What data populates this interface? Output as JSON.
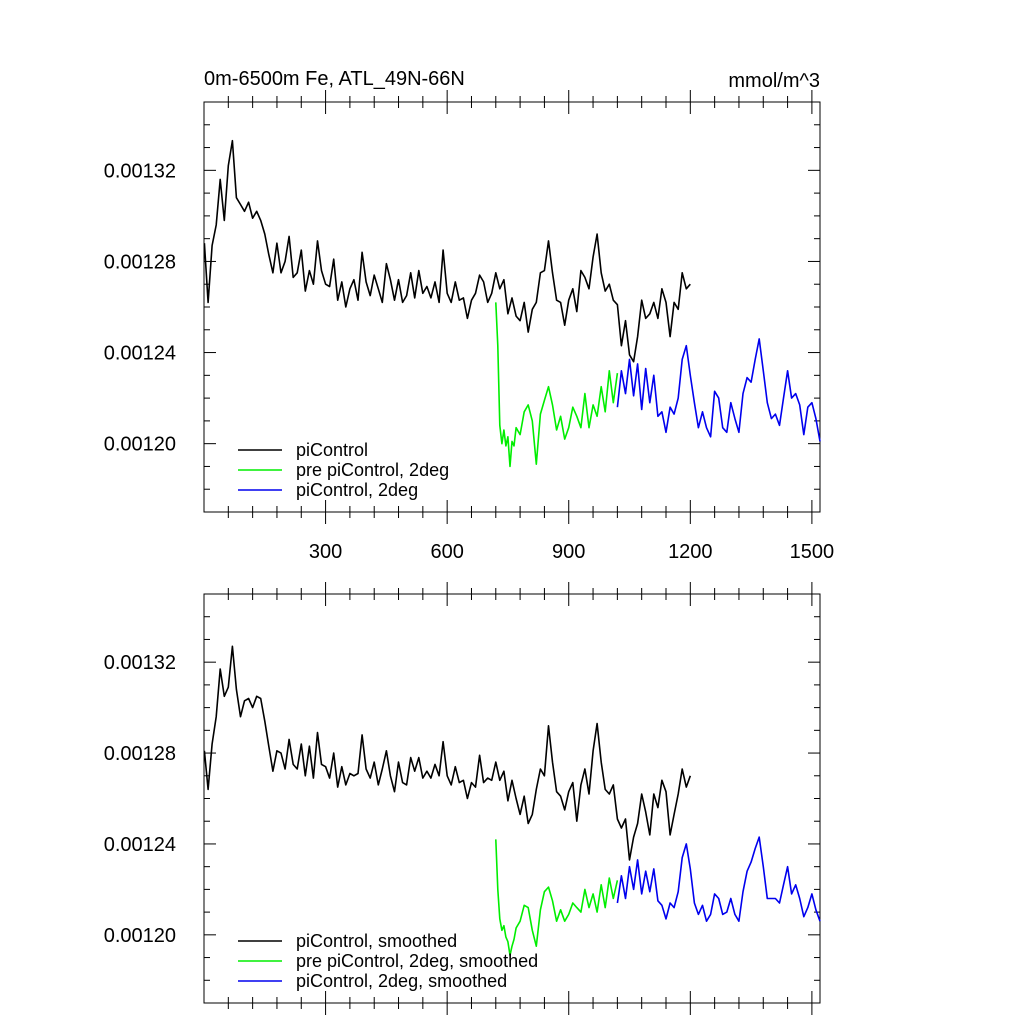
{
  "colors": {
    "black": "#000000",
    "green": "#00ee00",
    "blue": "#0000ee"
  },
  "chart_data": [
    {
      "type": "line",
      "title": "0m-6500m Fe, ATL_49N-66N",
      "units": "mmol/m^3",
      "xlim": [
        0,
        1520
      ],
      "ylim": [
        0.00117,
        0.00135
      ],
      "xticks": [
        "300",
        "600",
        "900",
        "1200",
        "1500"
      ],
      "yticks": [
        "0.00120",
        "0.00124",
        "0.00128",
        "0.00132"
      ],
      "series": [
        {
          "name": "piControl",
          "color": "#000000",
          "x": [
            1,
            10,
            20,
            30,
            40,
            50,
            60,
            70,
            80,
            90,
            100,
            110,
            120,
            130,
            140,
            150,
            160,
            170,
            180,
            190,
            200,
            210,
            220,
            230,
            240,
            250,
            260,
            270,
            280,
            290,
            300,
            310,
            320,
            330,
            340,
            350,
            360,
            370,
            380,
            390,
            400,
            410,
            420,
            430,
            440,
            450,
            460,
            470,
            480,
            490,
            500,
            510,
            520,
            530,
            540,
            550,
            560,
            570,
            580,
            590,
            600,
            610,
            620,
            630,
            640,
            650,
            660,
            670,
            680,
            690,
            700,
            710,
            720,
            730,
            740,
            750,
            760,
            770,
            780,
            790,
            800,
            810,
            820,
            830,
            840,
            850,
            860,
            870,
            880,
            890,
            900,
            910,
            920,
            930,
            940,
            950,
            960,
            970,
            980,
            990,
            1000,
            1010,
            1020,
            1030,
            1040,
            1050,
            1060,
            1070,
            1080,
            1090,
            1100,
            1110,
            1120,
            1130,
            1140,
            1150,
            1160,
            1170,
            1180,
            1190,
            1200
          ],
          "values": [
            0.001288,
            0.001262,
            0.001287,
            0.001296,
            0.001316,
            0.001298,
            0.001322,
            0.001333,
            0.001308,
            0.001305,
            0.001302,
            0.001306,
            0.001299,
            0.001302,
            0.001298,
            0.001292,
            0.001283,
            0.001275,
            0.001288,
            0.001275,
            0.00128,
            0.001291,
            0.001273,
            0.001275,
            0.001285,
            0.001267,
            0.001276,
            0.00127,
            0.001289,
            0.001276,
            0.00127,
            0.001269,
            0.001281,
            0.001263,
            0.001271,
            0.00126,
            0.001268,
            0.001272,
            0.001263,
            0.001284,
            0.001271,
            0.001265,
            0.001274,
            0.001268,
            0.001262,
            0.001279,
            0.001272,
            0.001263,
            0.001272,
            0.001262,
            0.001265,
            0.001275,
            0.001264,
            0.001276,
            0.001266,
            0.001269,
            0.001264,
            0.001271,
            0.001262,
            0.001285,
            0.001266,
            0.001262,
            0.001271,
            0.001263,
            0.001264,
            0.001255,
            0.001263,
            0.001266,
            0.001274,
            0.001271,
            0.001262,
            0.001266,
            0.001275,
            0.001268,
            0.001272,
            0.001257,
            0.001264,
            0.001256,
            0.001254,
            0.001262,
            0.001249,
            0.001259,
            0.001262,
            0.001275,
            0.001276,
            0.001289,
            0.001275,
            0.001263,
            0.001262,
            0.001252,
            0.001263,
            0.001268,
            0.001258,
            0.001276,
            0.001273,
            0.001268,
            0.001282,
            0.001292,
            0.001275,
            0.001267,
            0.00127,
            0.001263,
            0.001261,
            0.001243,
            0.001254,
            0.001239,
            0.001236,
            0.001247,
            0.001263,
            0.001255,
            0.001257,
            0.001262,
            0.001255,
            0.001268,
            0.001262,
            0.001247,
            0.001262,
            0.001259,
            0.001275,
            0.001268,
            0.00127
          ]
        },
        {
          "name": "pre piControl, 2deg",
          "color": "#00ee00",
          "x": [
            720,
            725,
            730,
            735,
            740,
            745,
            750,
            755,
            760,
            765,
            770,
            780,
            790,
            800,
            810,
            820,
            830,
            840,
            850,
            860,
            870,
            880,
            890,
            900,
            910,
            920,
            930,
            940,
            950,
            960,
            970,
            980,
            990,
            1000,
            1010,
            1020
          ],
          "values": [
            0.001262,
            0.001243,
            0.001208,
            0.0012,
            0.001206,
            0.001199,
            0.001203,
            0.00119,
            0.001201,
            0.001199,
            0.001207,
            0.001204,
            0.001214,
            0.001217,
            0.00121,
            0.001191,
            0.001213,
            0.001219,
            0.001225,
            0.001217,
            0.001206,
            0.001212,
            0.001202,
            0.001207,
            0.001216,
            0.001212,
            0.001207,
            0.001222,
            0.001207,
            0.001217,
            0.001212,
            0.001225,
            0.001214,
            0.001232,
            0.001218,
            0.001231
          ]
        },
        {
          "name": "piControl, 2deg",
          "color": "#0000ee",
          "x": [
            1020,
            1030,
            1040,
            1050,
            1060,
            1070,
            1080,
            1090,
            1100,
            1110,
            1120,
            1130,
            1140,
            1150,
            1160,
            1170,
            1180,
            1190,
            1200,
            1210,
            1220,
            1230,
            1240,
            1250,
            1260,
            1270,
            1280,
            1290,
            1300,
            1310,
            1320,
            1330,
            1340,
            1350,
            1360,
            1370,
            1380,
            1390,
            1400,
            1410,
            1420,
            1430,
            1440,
            1450,
            1460,
            1470,
            1480,
            1490,
            1500,
            1510,
            1520
          ],
          "values": [
            0.001216,
            0.001232,
            0.001222,
            0.001237,
            0.001221,
            0.001235,
            0.001215,
            0.001233,
            0.001218,
            0.00123,
            0.001212,
            0.001214,
            0.001205,
            0.001216,
            0.001213,
            0.00122,
            0.001237,
            0.001243,
            0.00123,
            0.001218,
            0.001207,
            0.001214,
            0.001207,
            0.001203,
            0.001223,
            0.00122,
            0.001207,
            0.001205,
            0.001218,
            0.001211,
            0.001205,
            0.001222,
            0.001229,
            0.001227,
            0.001237,
            0.001246,
            0.001232,
            0.001218,
            0.001211,
            0.001213,
            0.001208,
            0.00122,
            0.001232,
            0.00122,
            0.001222,
            0.001217,
            0.001204,
            0.001216,
            0.001218,
            0.001211,
            0.001201
          ]
        }
      ],
      "legend": {
        "placement": "bottom-left"
      }
    },
    {
      "type": "line",
      "title": "",
      "xlim": [
        0,
        1520
      ],
      "ylim": [
        0.00117,
        0.00135
      ],
      "yticks": [
        "0.00120",
        "0.00124",
        "0.00128",
        "0.00132"
      ],
      "series": [
        {
          "name": "piControl, smoothed",
          "color": "#000000",
          "x": [
            1,
            10,
            20,
            30,
            40,
            50,
            60,
            70,
            80,
            90,
            100,
            110,
            120,
            130,
            140,
            150,
            160,
            170,
            180,
            190,
            200,
            210,
            220,
            230,
            240,
            250,
            260,
            270,
            280,
            290,
            300,
            310,
            320,
            330,
            340,
            350,
            360,
            370,
            380,
            390,
            400,
            410,
            420,
            430,
            440,
            450,
            460,
            470,
            480,
            490,
            500,
            510,
            520,
            530,
            540,
            550,
            560,
            570,
            580,
            590,
            600,
            610,
            620,
            630,
            640,
            650,
            660,
            670,
            680,
            690,
            700,
            710,
            720,
            730,
            740,
            750,
            760,
            770,
            780,
            790,
            800,
            810,
            820,
            830,
            840,
            850,
            860,
            870,
            880,
            890,
            900,
            910,
            920,
            930,
            940,
            950,
            960,
            970,
            980,
            990,
            1000,
            1010,
            1020,
            1030,
            1040,
            1050,
            1060,
            1070,
            1080,
            1090,
            1100,
            1110,
            1120,
            1130,
            1140,
            1150,
            1160,
            1170,
            1180,
            1190,
            1200
          ],
          "values": [
            0.001281,
            0.001264,
            0.001284,
            0.001296,
            0.001317,
            0.001305,
            0.001309,
            0.001327,
            0.001308,
            0.001296,
            0.001303,
            0.001304,
            0.0013,
            0.001305,
            0.001304,
            0.001294,
            0.001283,
            0.001272,
            0.001281,
            0.00128,
            0.001273,
            0.001286,
            0.001275,
            0.001273,
            0.001284,
            0.00127,
            0.001283,
            0.001269,
            0.001289,
            0.001275,
            0.001274,
            0.001269,
            0.00128,
            0.001265,
            0.001274,
            0.001266,
            0.001271,
            0.00127,
            0.001271,
            0.001288,
            0.001273,
            0.001269,
            0.001276,
            0.001266,
            0.001273,
            0.001281,
            0.00127,
            0.001263,
            0.001276,
            0.001267,
            0.001266,
            0.001278,
            0.001272,
            0.001278,
            0.001269,
            0.001272,
            0.001269,
            0.001275,
            0.00127,
            0.001285,
            0.00127,
            0.001266,
            0.001274,
            0.001267,
            0.001268,
            0.00126,
            0.001267,
            0.001265,
            0.001279,
            0.001267,
            0.001269,
            0.001268,
            0.001276,
            0.001268,
            0.001272,
            0.001259,
            0.001268,
            0.00126,
            0.001253,
            0.001261,
            0.001249,
            0.001253,
            0.001264,
            0.001273,
            0.00127,
            0.001292,
            0.001276,
            0.001263,
            0.001261,
            0.001255,
            0.001263,
            0.001267,
            0.00125,
            0.001266,
            0.001273,
            0.001262,
            0.001281,
            0.001293,
            0.001276,
            0.001264,
            0.001262,
            0.001266,
            0.001251,
            0.001247,
            0.001251,
            0.001233,
            0.001243,
            0.001249,
            0.001262,
            0.001254,
            0.001244,
            0.001262,
            0.001256,
            0.001268,
            0.001263,
            0.001244,
            0.001253,
            0.001262,
            0.001273,
            0.001265,
            0.00127
          ]
        },
        {
          "name": "pre piControl, 2deg, smoothed",
          "color": "#00ee00",
          "x": [
            720,
            725,
            730,
            735,
            740,
            745,
            750,
            755,
            760,
            765,
            770,
            780,
            790,
            800,
            810,
            820,
            830,
            840,
            850,
            860,
            870,
            880,
            890,
            900,
            910,
            920,
            930,
            940,
            950,
            960,
            970,
            980,
            990,
            1000,
            1010,
            1020
          ],
          "values": [
            0.001242,
            0.00122,
            0.001207,
            0.001202,
            0.001204,
            0.001199,
            0.001197,
            0.001191,
            0.001195,
            0.001198,
            0.001203,
            0.001206,
            0.001213,
            0.001212,
            0.001202,
            0.001195,
            0.001211,
            0.001219,
            0.001221,
            0.001215,
            0.001206,
            0.001211,
            0.001206,
            0.001209,
            0.001214,
            0.001212,
            0.00121,
            0.00122,
            0.001212,
            0.001218,
            0.00121,
            0.001222,
            0.001212,
            0.001225,
            0.001216,
            0.001224
          ]
        },
        {
          "name": "piControl, 2deg, smoothed",
          "color": "#0000ee",
          "x": [
            1020,
            1030,
            1040,
            1050,
            1060,
            1070,
            1080,
            1090,
            1100,
            1110,
            1120,
            1130,
            1140,
            1150,
            1160,
            1170,
            1180,
            1190,
            1200,
            1210,
            1220,
            1230,
            1240,
            1250,
            1260,
            1270,
            1280,
            1290,
            1300,
            1310,
            1320,
            1330,
            1340,
            1350,
            1360,
            1370,
            1380,
            1390,
            1400,
            1410,
            1420,
            1430,
            1440,
            1450,
            1460,
            1470,
            1480,
            1490,
            1500,
            1510,
            1520
          ],
          "values": [
            0.001214,
            0.001226,
            0.001216,
            0.00123,
            0.00122,
            0.001233,
            0.001218,
            0.001228,
            0.001219,
            0.001229,
            0.001215,
            0.001213,
            0.001207,
            0.001214,
            0.001212,
            0.001219,
            0.001234,
            0.00124,
            0.001229,
            0.001214,
            0.001209,
            0.001213,
            0.001206,
            0.001209,
            0.001218,
            0.001216,
            0.001209,
            0.00121,
            0.001216,
            0.001209,
            0.001206,
            0.001219,
            0.001228,
            0.001232,
            0.001238,
            0.001243,
            0.00123,
            0.001216,
            0.001216,
            0.001216,
            0.001214,
            0.001222,
            0.00123,
            0.001218,
            0.001222,
            0.001216,
            0.001208,
            0.001212,
            0.001218,
            0.001211,
            0.001206
          ]
        }
      ],
      "legend": {
        "placement": "bottom-left"
      }
    }
  ]
}
